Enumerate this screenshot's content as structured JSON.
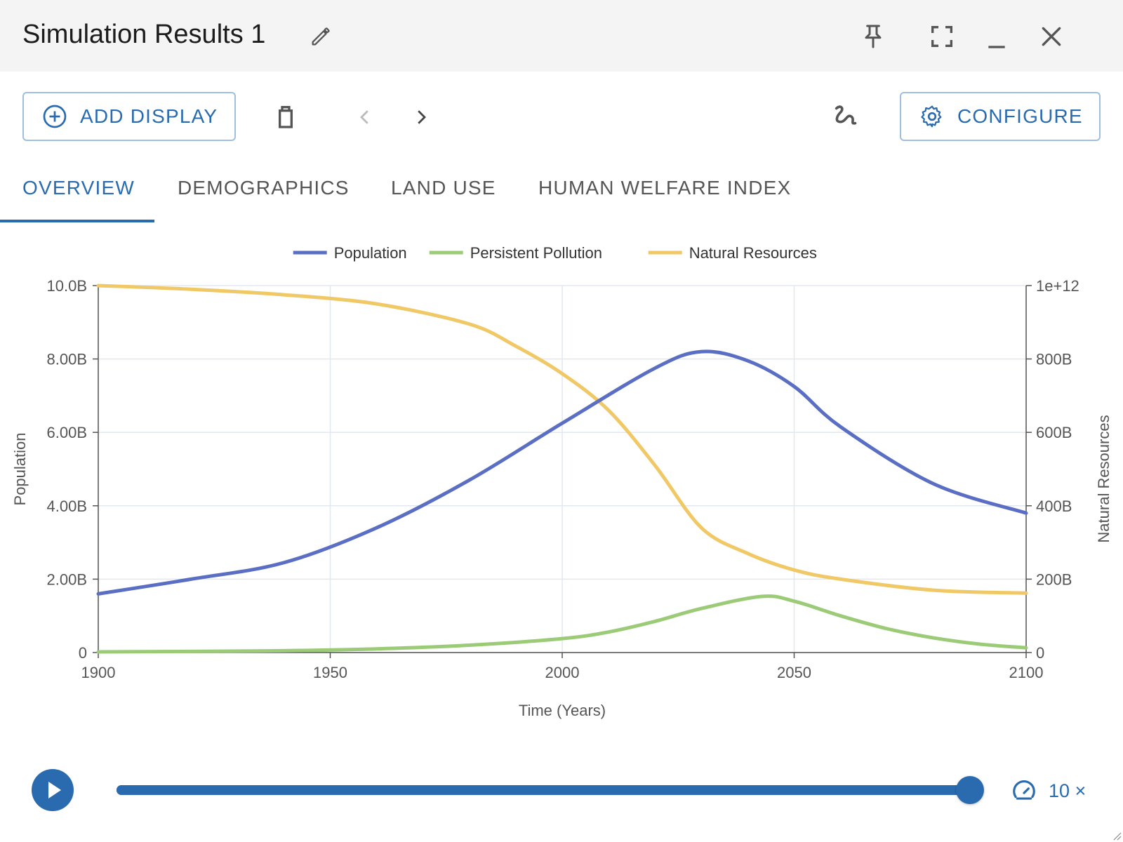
{
  "window": {
    "title": "Simulation Results 1"
  },
  "toolbar": {
    "add_display_label": "ADD DISPLAY",
    "configure_label": "CONFIGURE"
  },
  "tabs": [
    {
      "label": "OVERVIEW",
      "active": true
    },
    {
      "label": "DEMOGRAPHICS",
      "active": false
    },
    {
      "label": "LAND USE",
      "active": false
    },
    {
      "label": "HUMAN WELFARE INDEX",
      "active": false
    }
  ],
  "colors": {
    "accent": "#2a6bb0",
    "population": "#5a6ec4",
    "pollution": "#9ccb78",
    "resources": "#f0c865"
  },
  "playback": {
    "speed_label": "10 ×",
    "progress": 1.0
  },
  "chart_data": {
    "type": "line",
    "xlabel": "Time (Years)",
    "ylabel": "Population",
    "y2label": "Natural Resources",
    "xlim": [
      1900,
      2100
    ],
    "ylim": [
      0,
      10000000000
    ],
    "y2lim": [
      0,
      1000000000000
    ],
    "x_ticks": [
      "1900",
      "1950",
      "2000",
      "2050",
      "2100"
    ],
    "y_ticks": [
      "0",
      "2.00B",
      "4.00B",
      "6.00B",
      "8.00B",
      "10.0B"
    ],
    "y2_ticks": [
      "0",
      "200B",
      "400B",
      "600B",
      "800B",
      "1e+12"
    ],
    "legend_position": "top-center",
    "grid": true,
    "series": [
      {
        "name": "Population",
        "axis": "left",
        "color": "#5a6ec4",
        "x": [
          1900,
          1920,
          1940,
          1960,
          1980,
          2000,
          2020,
          2030,
          2040,
          2050,
          2060,
          2080,
          2100
        ],
        "y": [
          1600000000,
          2000000000,
          2450000000,
          3400000000,
          4700000000,
          6250000000,
          7750000000,
          8200000000,
          7950000000,
          7250000000,
          6150000000,
          4600000000,
          3800000000
        ]
      },
      {
        "name": "Persistent Pollution",
        "axis": "left",
        "color": "#9ccb78",
        "x": [
          1900,
          1920,
          1940,
          1960,
          1980,
          2000,
          2010,
          2020,
          2030,
          2043,
          2050,
          2060,
          2070,
          2080,
          2090,
          2100
        ],
        "y": [
          20000000,
          30000000,
          50000000,
          100000000,
          200000000,
          380000000,
          560000000,
          850000000,
          1200000000,
          1530000000,
          1400000000,
          1000000000,
          650000000,
          400000000,
          230000000,
          130000000
        ]
      },
      {
        "name": "Natural Resources",
        "axis": "right",
        "color": "#f0c865",
        "x": [
          1900,
          1920,
          1940,
          1960,
          1980,
          1990,
          2000,
          2010,
          2020,
          2030,
          2040,
          2050,
          2060,
          2080,
          2100
        ],
        "y": [
          1000000000000,
          990000000000,
          975000000000,
          950000000000,
          895000000000,
          835000000000,
          760000000000,
          660000000000,
          510000000000,
          340000000000,
          270000000000,
          225000000000,
          200000000000,
          170000000000,
          162000000000
        ]
      }
    ]
  }
}
